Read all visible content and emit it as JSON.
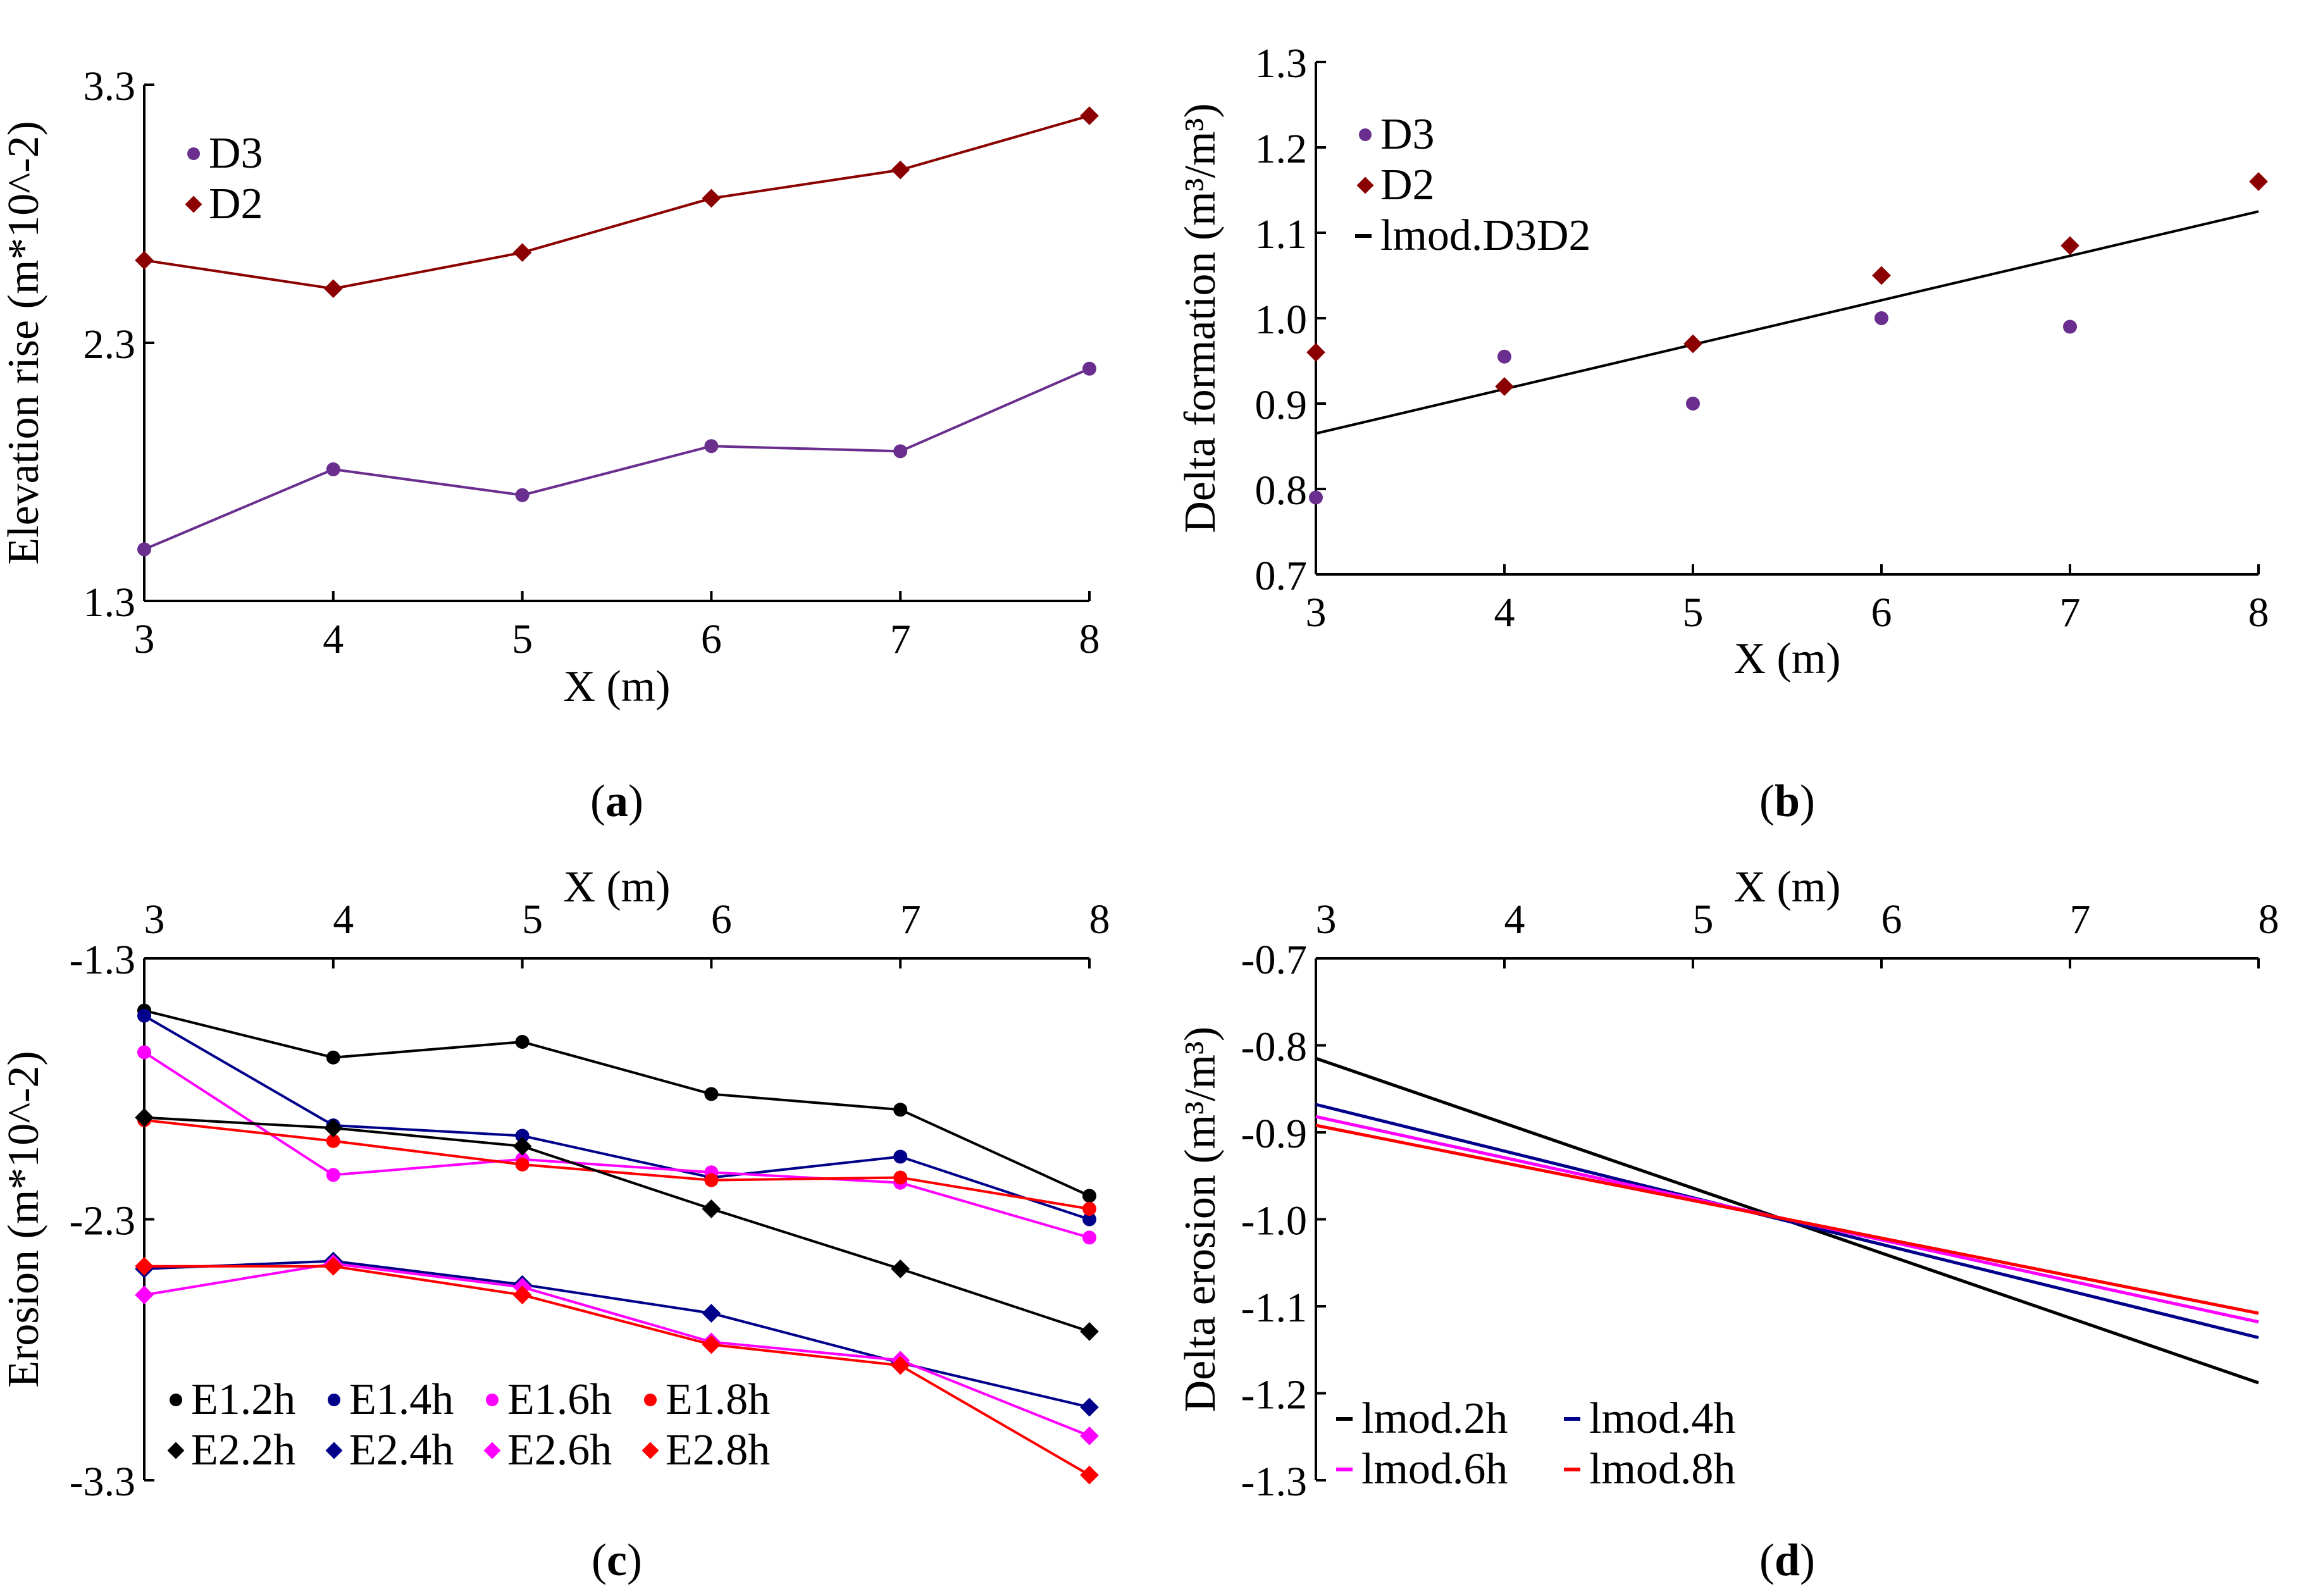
{
  "chart_data": [
    {
      "panel": "a",
      "type": "line",
      "panel_label": "a",
      "xlabel": "X (m)",
      "ylabel": "Elevation rise (m*10^-2)",
      "xlim": [
        3,
        8
      ],
      "ylim": [
        1.3,
        3.3
      ],
      "xticks": [
        "3",
        "4",
        "5",
        "6",
        "7",
        "8"
      ],
      "yticks": [
        "1.3",
        "2.3",
        "3.3"
      ],
      "x": [
        3,
        4,
        5,
        6,
        7,
        8
      ],
      "legend_position": "top-left",
      "series": [
        {
          "name": "D3",
          "color": "#6a2e8e",
          "marker": "circle",
          "values": [
            1.5,
            1.81,
            1.71,
            1.9,
            1.88,
            2.2
          ]
        },
        {
          "name": "D2",
          "color": "#8b0000",
          "marker": "diamond",
          "values": [
            2.62,
            2.51,
            2.65,
            2.86,
            2.97,
            3.18
          ]
        }
      ]
    },
    {
      "panel": "b",
      "type": "scatter",
      "panel_label": "b",
      "xlabel": "X (m)",
      "ylabel": "Delta formation (m³/m³)",
      "xlim": [
        3,
        8
      ],
      "ylim": [
        0.7,
        1.3
      ],
      "xticks": [
        "3",
        "4",
        "5",
        "6",
        "7",
        "8"
      ],
      "yticks": [
        "0.7",
        "0.8",
        "0.9",
        "1.0",
        "1.1",
        "1.2",
        "1.3"
      ],
      "x": [
        3,
        4,
        5,
        6,
        7,
        8
      ],
      "legend_position": "top-left",
      "series": [
        {
          "name": "D3",
          "color": "#6a2e8e",
          "marker": "circle",
          "values": [
            0.79,
            0.955,
            0.9,
            1.0,
            0.99,
            null
          ]
        },
        {
          "name": "D2",
          "color": "#8b0000",
          "marker": "diamond",
          "values": [
            0.96,
            0.92,
            0.97,
            1.05,
            1.085,
            1.16
          ]
        }
      ],
      "fit_lines": [
        {
          "name": "lmod.D3D2",
          "color": "#000000",
          "x": [
            3,
            8
          ],
          "values": [
            0.865,
            1.125
          ]
        }
      ]
    },
    {
      "panel": "c",
      "type": "line",
      "panel_label": "c",
      "xlabel": "X (m)",
      "ylabel": "Erosion (m*10^-2)",
      "xaxis_position": "top",
      "xlim": [
        3,
        8
      ],
      "ylim": [
        -3.3,
        -1.3
      ],
      "xticks": [
        "3",
        "4",
        "5",
        "6",
        "7",
        "8"
      ],
      "yticks": [
        "-3.3",
        "-2.3",
        "-1.3"
      ],
      "x": [
        3,
        4,
        5,
        6,
        7,
        8
      ],
      "legend_position": "bottom-left",
      "series": [
        {
          "name": "E1.2h",
          "color": "#000000",
          "marker": "circle",
          "values": [
            -1.5,
            -1.68,
            -1.62,
            -1.82,
            -1.88,
            -2.21
          ]
        },
        {
          "name": "E1.4h",
          "color": "#00008b",
          "marker": "circle",
          "values": [
            -1.52,
            -1.94,
            -1.98,
            -2.14,
            -2.06,
            -2.3
          ]
        },
        {
          "name": "E1.6h",
          "color": "#ff00ff",
          "marker": "circle",
          "values": [
            -1.66,
            -2.13,
            -2.07,
            -2.12,
            -2.16,
            -2.37
          ]
        },
        {
          "name": "E1.8h",
          "color": "#ff0000",
          "marker": "circle",
          "values": [
            -1.92,
            -2.0,
            -2.09,
            -2.15,
            -2.14,
            -2.26
          ]
        },
        {
          "name": "E2.2h",
          "color": "#000000",
          "marker": "diamond",
          "values": [
            -1.91,
            -1.95,
            -2.02,
            -2.26,
            -2.49,
            -2.73
          ]
        },
        {
          "name": "E2.4h",
          "color": "#00008b",
          "marker": "diamond",
          "values": [
            -2.49,
            -2.46,
            -2.55,
            -2.66,
            -2.85,
            -3.02
          ]
        },
        {
          "name": "E2.6h",
          "color": "#ff00ff",
          "marker": "diamond",
          "values": [
            -2.59,
            -2.47,
            -2.56,
            -2.77,
            -2.84,
            -3.13
          ]
        },
        {
          "name": "E2.8h",
          "color": "#ff0000",
          "marker": "diamond",
          "values": [
            -2.48,
            -2.48,
            -2.59,
            -2.78,
            -2.86,
            -3.28
          ]
        }
      ]
    },
    {
      "panel": "d",
      "type": "line",
      "panel_label": "d",
      "xlabel": "X (m)",
      "ylabel": "Delta erosion (m³/m³)",
      "xaxis_position": "top",
      "xlim": [
        3,
        8
      ],
      "ylim": [
        -1.3,
        -0.7
      ],
      "xticks": [
        "3",
        "4",
        "5",
        "6",
        "7",
        "8"
      ],
      "yticks": [
        "-1.3",
        "-1.2",
        "-1.1",
        "-1.0",
        "-0.9",
        "-0.8",
        "-0.7"
      ],
      "x": [
        3,
        8
      ],
      "legend_position": "bottom-left",
      "series": [
        {
          "name": "lmod.2h",
          "color": "#000000",
          "values": [
            -0.815,
            -1.188
          ]
        },
        {
          "name": "lmod.4h",
          "color": "#00008b",
          "values": [
            -0.868,
            -1.136
          ]
        },
        {
          "name": "lmod.6h",
          "color": "#ff00ff",
          "values": [
            -0.882,
            -1.118
          ]
        },
        {
          "name": "lmod.8h",
          "color": "#ff0000",
          "values": [
            -0.892,
            -1.108
          ]
        }
      ]
    }
  ]
}
